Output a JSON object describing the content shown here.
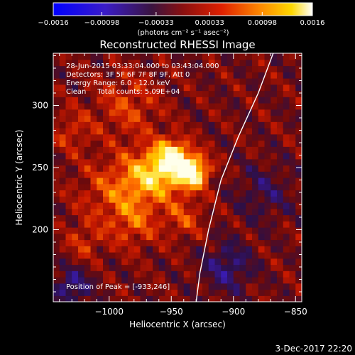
{
  "chart_data": {
    "type": "heatmap",
    "title": "Reconstructed RHESSI Image",
    "xlabel": "Heliocentric X (arcsec)",
    "ylabel": "Heliocentric Y (arcsec)",
    "xlim": [
      -1045,
      -845
    ],
    "ylim": [
      142,
      342
    ],
    "x_ticks": [
      -1000,
      -950,
      -900,
      -850
    ],
    "x_tick_labels": [
      "−1000",
      "−950",
      "−900",
      "−850"
    ],
    "y_ticks": [
      200,
      250,
      300
    ],
    "y_tick_labels": [
      "200",
      "250",
      "300"
    ],
    "colorbar": {
      "range": [
        -0.0016,
        0.0016
      ],
      "tick_labels": [
        "−0.0016",
        "−0.00098",
        "−0.00033",
        "0.00033",
        "0.00098",
        "0.0016"
      ],
      "unit_label": "(photons cm⁻² s⁻¹ asec⁻²)",
      "colormap": "blue-purple-red-yellow-white"
    },
    "annotations": [
      "28-Jun-2015 03:33:04.000 to 03:43:04.000",
      "Detectors: 3F 5F 6F 7F 8F 9F, Att 0",
      "Energy Range: 6.0 - 12.0 keV",
      "Clean     Total counts: 5.09E+04"
    ],
    "peak_label": "Position of Peak = [-933,246]",
    "peak": {
      "x": -933,
      "y": 246
    },
    "limb_curve": [
      {
        "x": -868,
        "y": 342
      },
      {
        "x": -880,
        "y": 310
      },
      {
        "x": -896,
        "y": 275
      },
      {
        "x": -910,
        "y": 240
      },
      {
        "x": -920,
        "y": 200
      },
      {
        "x": -927,
        "y": 165
      },
      {
        "x": -930,
        "y": 142
      }
    ],
    "sources": [
      {
        "x": -933,
        "y": 247,
        "value": 0.0016,
        "sigma": 9
      },
      {
        "x": -955,
        "y": 250,
        "value": 0.0011,
        "sigma": 14
      },
      {
        "x": -948,
        "y": 262,
        "value": 0.0008,
        "sigma": 8
      },
      {
        "x": -975,
        "y": 240,
        "value": 0.0006,
        "sigma": 16
      },
      {
        "x": -1000,
        "y": 230,
        "value": 0.00045,
        "sigma": 20
      },
      {
        "x": -980,
        "y": 205,
        "value": 0.0005,
        "sigma": 14
      },
      {
        "x": -985,
        "y": 300,
        "value": 0.0005,
        "sigma": 18
      },
      {
        "x": -1030,
        "y": 280,
        "value": 0.0004,
        "sigma": 12
      },
      {
        "x": -1020,
        "y": 190,
        "value": 0.0004,
        "sigma": 10
      },
      {
        "x": -940,
        "y": 210,
        "value": 0.0005,
        "sigma": 12
      },
      {
        "x": -905,
        "y": 170,
        "value": -0.0006,
        "sigma": 14
      },
      {
        "x": -875,
        "y": 230,
        "value": -0.0004,
        "sigma": 16
      },
      {
        "x": -1030,
        "y": 155,
        "value": -0.0007,
        "sigma": 10
      }
    ]
  },
  "footer": {
    "date": "3-Dec-2017 22:20"
  }
}
